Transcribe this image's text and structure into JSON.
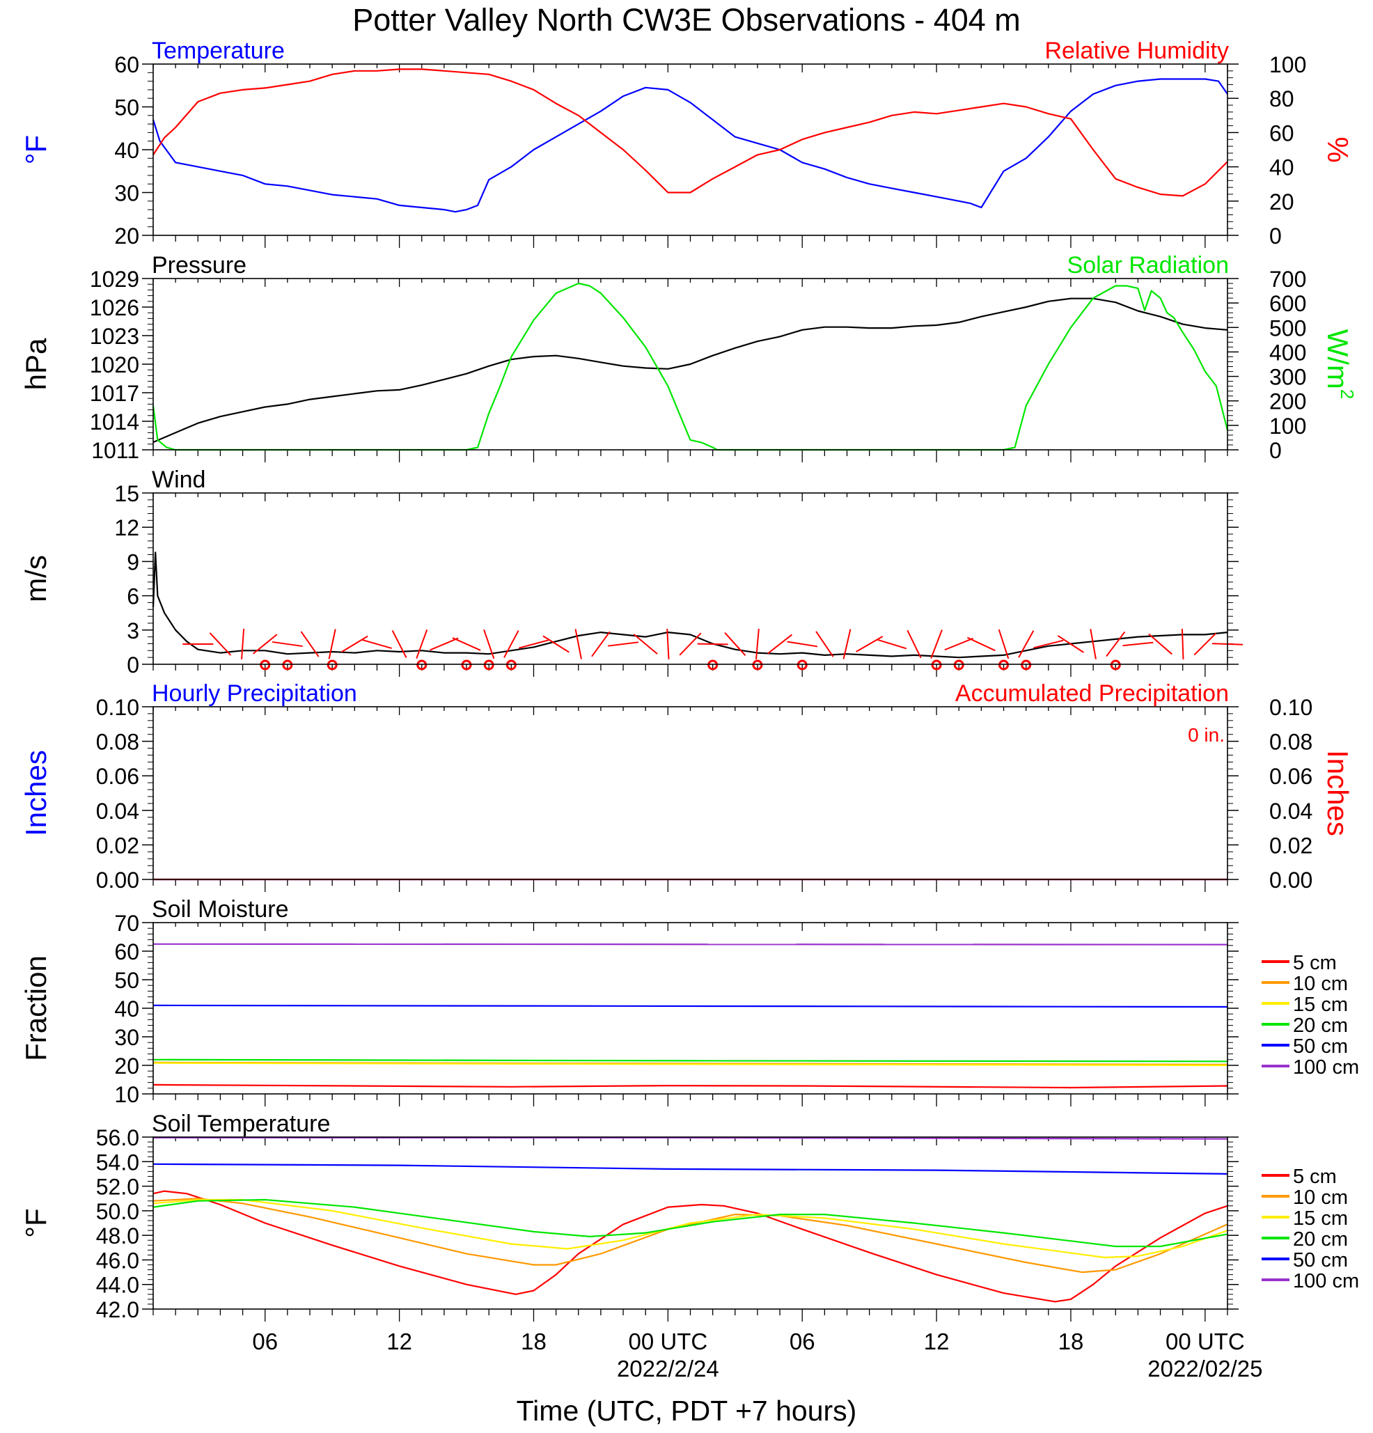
{
  "title": "Potter Valley North CW3E Observations - 404 m",
  "xlabel": "Time (UTC, PDT +7 hours)",
  "x_ticks": [
    {
      "h": 6,
      "label": "06",
      "date": ""
    },
    {
      "h": 12,
      "label": "12",
      "date": ""
    },
    {
      "h": 18,
      "label": "18",
      "date": ""
    },
    {
      "h": 24,
      "label": "00 UTC",
      "date": "2022/2/24"
    },
    {
      "h": 30,
      "label": "06",
      "date": ""
    },
    {
      "h": 36,
      "label": "12",
      "date": ""
    },
    {
      "h": 42,
      "label": "18",
      "date": ""
    },
    {
      "h": 48,
      "label": "00 UTC",
      "date": "2022/02/25"
    }
  ],
  "x_range_hours": [
    1,
    49
  ],
  "colors": {
    "blue": "#0000ff",
    "red": "#ff0000",
    "green": "#00e600",
    "black": "#000000",
    "orange": "#ff9900",
    "yellow": "#ffee00",
    "purple": "#9933cc"
  },
  "chart_data": [
    {
      "type": "line",
      "name": "temperature-humidity",
      "title_left": "Temperature",
      "title_right": "Relative Humidity",
      "ylabel_left": "°F",
      "ylabel_right": "%",
      "ylim": [
        20,
        60
      ],
      "y2lim": [
        0,
        100
      ],
      "yticks": [
        "20",
        "30",
        "40",
        "50",
        "60"
      ],
      "y2ticks": [
        "0",
        "20",
        "40",
        "60",
        "80",
        "100"
      ],
      "series": [
        {
          "axis": "left",
          "color": "#0000ff",
          "x": [
            1,
            1.3,
            2,
            3,
            4,
            5,
            6,
            7,
            8,
            9,
            10,
            11,
            12,
            13,
            14,
            14.5,
            15,
            15.5,
            16,
            17,
            18,
            19,
            20,
            21,
            22,
            23,
            24,
            25,
            26,
            27,
            28,
            29,
            30,
            31,
            32,
            33,
            34,
            35,
            36,
            37,
            37.5,
            38,
            39,
            40,
            41,
            42,
            43,
            44,
            45,
            46,
            47,
            48,
            48.6,
            49
          ],
          "y": [
            47,
            42,
            37,
            36,
            35,
            34,
            32,
            31.5,
            30.5,
            29.5,
            29,
            28.5,
            27,
            26.5,
            26,
            25.5,
            26,
            27,
            33,
            36,
            40,
            43,
            46,
            49,
            52.5,
            54.5,
            54,
            51,
            47,
            43,
            41.5,
            40,
            37,
            35.5,
            33.5,
            32,
            31,
            30,
            29,
            28,
            27.5,
            26.5,
            35,
            38,
            43,
            49,
            53,
            55,
            56,
            56.5,
            56.5,
            56.5,
            56,
            53
          ]
        },
        {
          "axis": "right",
          "color": "#ff0000",
          "x": [
            1,
            1.5,
            2,
            3,
            4,
            5,
            6,
            7,
            8,
            9,
            10,
            11,
            12,
            13,
            14,
            15,
            16,
            17,
            18,
            19,
            20,
            21,
            22,
            23,
            24,
            25,
            26,
            27,
            28,
            29,
            30,
            31,
            32,
            33,
            34,
            35,
            36,
            37,
            38,
            39,
            40,
            41,
            42,
            43,
            44,
            45,
            46,
            47,
            48,
            49
          ],
          "y": [
            47,
            57,
            63,
            78,
            83,
            85,
            86,
            88,
            90,
            94,
            96,
            96,
            97,
            97,
            96,
            95,
            94,
            90,
            85,
            77,
            70,
            60,
            50,
            38,
            25,
            25,
            33,
            40,
            47,
            50,
            56,
            60,
            63,
            66,
            70,
            72,
            71,
            73,
            75,
            77,
            75,
            71,
            68,
            50,
            33,
            28,
            24,
            23,
            30,
            43
          ]
        }
      ]
    },
    {
      "type": "line",
      "name": "pressure-solar",
      "title_left": "Pressure",
      "title_right": "Solar Radiation",
      "ylabel_left": "hPa",
      "ylabel_right": "W/m",
      "ylabel_right_sup": "2",
      "ylim": [
        1011,
        1029
      ],
      "y2lim": [
        0,
        700
      ],
      "yticks": [
        "1011",
        "1014",
        "1017",
        "1020",
        "1023",
        "1026",
        "1029"
      ],
      "y2ticks": [
        "0",
        "100",
        "200",
        "300",
        "400",
        "500",
        "600",
        "700"
      ],
      "series": [
        {
          "axis": "left",
          "color": "#000000",
          "x": [
            1,
            2,
            3,
            4,
            5,
            6,
            7,
            8,
            9,
            10,
            11,
            12,
            13,
            14,
            15,
            16,
            17,
            18,
            19,
            20,
            21,
            22,
            23,
            24,
            25,
            26,
            27,
            28,
            29,
            30,
            31,
            32,
            33,
            34,
            35,
            36,
            37,
            38,
            39,
            40,
            41,
            42,
            43,
            44,
            45,
            46,
            47,
            48,
            49
          ],
          "y": [
            1011.8,
            1012.8,
            1013.8,
            1014.5,
            1015.0,
            1015.5,
            1015.8,
            1016.3,
            1016.6,
            1016.9,
            1017.2,
            1017.3,
            1017.8,
            1018.4,
            1019.0,
            1019.8,
            1020.5,
            1020.8,
            1020.9,
            1020.6,
            1020.2,
            1019.8,
            1019.6,
            1019.5,
            1020.0,
            1020.9,
            1021.7,
            1022.4,
            1022.9,
            1023.6,
            1023.9,
            1023.9,
            1023.8,
            1023.8,
            1024.0,
            1024.1,
            1024.4,
            1025.0,
            1025.5,
            1026.0,
            1026.6,
            1026.9,
            1026.9,
            1026.5,
            1025.6,
            1025.0,
            1024.2,
            1023.8,
            1023.6
          ]
        },
        {
          "axis": "right",
          "color": "#00e600",
          "x": [
            1,
            1.2,
            1.6,
            2,
            15,
            15.5,
            16,
            16.5,
            17,
            18,
            19,
            20,
            20.5,
            21,
            22,
            23,
            24,
            24.5,
            25,
            25.5,
            26,
            26.2,
            26.5,
            27,
            39,
            39.5,
            40,
            41,
            42,
            43,
            44,
            44.5,
            45,
            45.3,
            45.6,
            46,
            46.3,
            46.6,
            47,
            47.5,
            48,
            48.5,
            49
          ],
          "y": [
            180,
            40,
            10,
            0,
            0,
            10,
            150,
            260,
            380,
            530,
            640,
            680,
            670,
            640,
            540,
            420,
            260,
            150,
            40,
            30,
            10,
            0,
            0,
            0,
            0,
            10,
            180,
            350,
            500,
            620,
            670,
            670,
            660,
            570,
            650,
            620,
            560,
            540,
            480,
            410,
            320,
            260,
            80
          ]
        }
      ]
    },
    {
      "type": "line",
      "name": "wind",
      "title_left": "Wind",
      "ylabel_left": "m/s",
      "ylim": [
        0,
        15
      ],
      "yticks": [
        "0",
        "3",
        "6",
        "9",
        "12",
        "15"
      ],
      "series": [
        {
          "axis": "left",
          "color": "#000000",
          "x": [
            1,
            1.1,
            1.2,
            1.5,
            2,
            2.5,
            3,
            4,
            5,
            6,
            7,
            8,
            9,
            10,
            11,
            12,
            13,
            14,
            15,
            16,
            17,
            18,
            19,
            20,
            21,
            22,
            23,
            24,
            25,
            26,
            27,
            28,
            29,
            30,
            31,
            32,
            33,
            34,
            35,
            36,
            37,
            38,
            39,
            40,
            41,
            42,
            43,
            44,
            45,
            46,
            47,
            48,
            49
          ],
          "y": [
            5,
            9.8,
            6,
            4.5,
            3,
            2,
            1.3,
            1.0,
            1.2,
            1.2,
            0.9,
            1.0,
            1.1,
            1.0,
            1.2,
            1.1,
            1.2,
            1.0,
            1.0,
            0.9,
            1.2,
            1.5,
            2.0,
            2.5,
            2.8,
            2.6,
            2.4,
            2.8,
            2.6,
            1.8,
            1.3,
            1.0,
            0.9,
            1.0,
            0.8,
            0.9,
            0.8,
            0.7,
            0.8,
            0.7,
            0.6,
            0.7,
            0.8,
            1.2,
            1.6,
            1.8,
            2.0,
            2.2,
            2.4,
            2.5,
            2.6,
            2.6,
            2.8
          ]
        }
      ],
      "barbs_hours": [
        3,
        4,
        5,
        6,
        7,
        8,
        9,
        10,
        11,
        12,
        13,
        14,
        15,
        16,
        17,
        18,
        19,
        20,
        21,
        22,
        23,
        24,
        25,
        26,
        27,
        28,
        29,
        30,
        31,
        32,
        33,
        34,
        35,
        36,
        37,
        38,
        39,
        40,
        41,
        42,
        43,
        44,
        45,
        46,
        47,
        48,
        49
      ],
      "calm_hours": [
        6,
        7,
        9,
        13,
        15,
        16,
        17,
        26,
        28,
        30,
        36,
        37,
        39,
        40,
        44
      ]
    },
    {
      "type": "line",
      "name": "precipitation",
      "title_left": "Hourly Precipitation",
      "title_right": "Accumulated Precipitation",
      "annotation": "0 in.",
      "ylabel_left": "Inches",
      "ylabel_right": "Inches",
      "ylim": [
        0,
        0.1
      ],
      "y2lim": [
        0,
        0.1
      ],
      "yticks": [
        "0.00",
        "0.02",
        "0.04",
        "0.06",
        "0.08",
        "0.10"
      ],
      "y2ticks": [
        "0.00",
        "0.02",
        "0.04",
        "0.06",
        "0.08",
        "0.10"
      ],
      "series": [
        {
          "axis": "left",
          "color": "#0000ff",
          "x": [
            1,
            49
          ],
          "y": [
            0,
            0
          ]
        },
        {
          "axis": "right",
          "color": "#ff0000",
          "x": [
            1,
            49
          ],
          "y": [
            0,
            0
          ]
        }
      ]
    },
    {
      "type": "line",
      "name": "soil-moisture",
      "title_left": "Soil Moisture",
      "ylabel_left": "Fraction",
      "ylim": [
        10,
        70
      ],
      "yticks": [
        "10",
        "20",
        "30",
        "40",
        "50",
        "60",
        "70"
      ],
      "legend": [
        "5 cm",
        "10 cm",
        "15 cm",
        "20 cm",
        "50 cm",
        "100 cm"
      ],
      "series": [
        {
          "name": "5 cm",
          "color": "#ff0000",
          "x": [
            1,
            17,
            24,
            30,
            42,
            49
          ],
          "y": [
            13.2,
            12.5,
            12.9,
            12.8,
            12.2,
            12.8
          ]
        },
        {
          "name": "10 cm",
          "color": "#ff9900",
          "x": [
            1,
            49
          ],
          "y": [
            21.0,
            20.3
          ]
        },
        {
          "name": "15 cm",
          "color": "#ffee00",
          "x": [
            1,
            49
          ],
          "y": [
            20.8,
            20.0
          ]
        },
        {
          "name": "20 cm",
          "color": "#00e600",
          "x": [
            1,
            25,
            49
          ],
          "y": [
            22.0,
            21.6,
            21.4
          ]
        },
        {
          "name": "50 cm",
          "color": "#0000ff",
          "x": [
            1,
            49
          ],
          "y": [
            41.0,
            40.5
          ]
        },
        {
          "name": "100 cm",
          "color": "#9933cc",
          "x": [
            1,
            49
          ],
          "y": [
            62.5,
            62.3
          ]
        }
      ]
    },
    {
      "type": "line",
      "name": "soil-temperature",
      "title_left": "Soil Temperature",
      "ylabel_left": "°F",
      "ylim": [
        42,
        56
      ],
      "yticks": [
        "42.0",
        "44.0",
        "46.0",
        "48.0",
        "50.0",
        "52.0",
        "54.0",
        "56.0"
      ],
      "legend": [
        "5 cm",
        "10 cm",
        "15 cm",
        "20 cm",
        "50 cm",
        "100 cm"
      ],
      "series": [
        {
          "name": "5 cm",
          "color": "#ff0000",
          "x": [
            1,
            1.5,
            2.5,
            4,
            6,
            9,
            12,
            15,
            17.2,
            18,
            19,
            20,
            22,
            24,
            25.5,
            26.5,
            28,
            30,
            33,
            36,
            39,
            41.3,
            42,
            43,
            44,
            46,
            48,
            49
          ],
          "y": [
            51.4,
            51.6,
            51.4,
            50.5,
            49.0,
            47.2,
            45.5,
            44.0,
            43.2,
            43.5,
            44.8,
            46.5,
            48.9,
            50.3,
            50.5,
            50.4,
            49.8,
            48.5,
            46.6,
            44.8,
            43.3,
            42.6,
            42.8,
            44.0,
            45.5,
            47.8,
            49.8,
            50.4
          ]
        },
        {
          "name": "10 cm",
          "color": "#ff9900",
          "x": [
            1,
            3,
            5,
            8,
            12,
            15,
            18,
            19,
            21,
            24,
            27,
            29,
            32,
            36,
            40,
            42.5,
            44,
            46,
            49
          ],
          "y": [
            50.8,
            51.0,
            50.6,
            49.5,
            47.8,
            46.5,
            45.6,
            45.6,
            46.5,
            48.5,
            49.7,
            49.6,
            48.8,
            47.3,
            45.8,
            45.0,
            45.2,
            46.5,
            48.9
          ]
        },
        {
          "name": "15 cm",
          "color": "#ffee00",
          "x": [
            1,
            3,
            5,
            9,
            13,
            17,
            19.5,
            22,
            25,
            28,
            31,
            35,
            39,
            43.5,
            45,
            47,
            49
          ],
          "y": [
            50.6,
            50.9,
            50.9,
            50.0,
            48.6,
            47.3,
            46.9,
            47.6,
            49.0,
            49.7,
            49.4,
            48.5,
            47.3,
            46.2,
            46.3,
            47.1,
            48.4
          ]
        },
        {
          "name": "20 cm",
          "color": "#00e600",
          "x": [
            1,
            3,
            6,
            10,
            14,
            18,
            20.5,
            23,
            26,
            29,
            31,
            35,
            39,
            44,
            46,
            49
          ],
          "y": [
            50.3,
            50.8,
            50.9,
            50.3,
            49.3,
            48.3,
            47.9,
            48.2,
            49.1,
            49.7,
            49.7,
            49.0,
            48.2,
            47.1,
            47.1,
            48.1
          ]
        },
        {
          "name": "50 cm",
          "color": "#0000ff",
          "x": [
            1,
            12,
            24,
            36,
            49
          ],
          "y": [
            53.8,
            53.7,
            53.4,
            53.3,
            53.0
          ]
        },
        {
          "name": "100 cm",
          "color": "#9933cc",
          "x": [
            1,
            24,
            49
          ],
          "y": [
            55.95,
            55.95,
            55.85
          ]
        }
      ]
    }
  ]
}
